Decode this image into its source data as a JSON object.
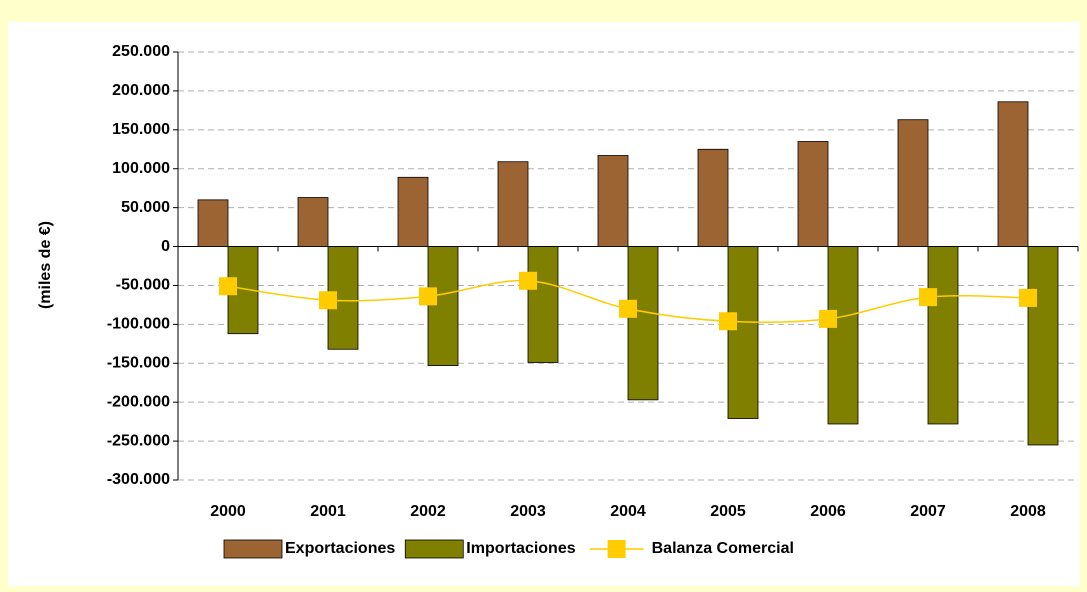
{
  "chart_data": {
    "type": "bar",
    "y_label": "(miles de €)",
    "categories": [
      "2000",
      "2001",
      "2002",
      "2003",
      "2004",
      "2005",
      "2006",
      "2007",
      "2008"
    ],
    "series": [
      {
        "name": "Exportaciones",
        "type": "bar",
        "color": "#9c6433",
        "values": [
          60000,
          63000,
          89000,
          109000,
          117000,
          125000,
          135000,
          163000,
          186000
        ]
      },
      {
        "name": "Importaciones",
        "type": "bar",
        "color": "#808000",
        "values": [
          -112000,
          -132000,
          -153000,
          -149000,
          -197000,
          -221000,
          -228000,
          -228000,
          -255000
        ]
      },
      {
        "name": "Balanza Comercial",
        "type": "line",
        "color": "#ffcc00",
        "values": [
          -51000,
          -69000,
          -64000,
          -44000,
          -80000,
          -96000,
          -93000,
          -65000,
          -66000
        ]
      }
    ],
    "ylim": [
      -300000,
      250000
    ],
    "yticks": [
      {
        "value": -300000,
        "label": "-300.000"
      },
      {
        "value": -250000,
        "label": "-250.000"
      },
      {
        "value": -200000,
        "label": "-200.000"
      },
      {
        "value": -150000,
        "label": "-150.000"
      },
      {
        "value": -100000,
        "label": "-100.000"
      },
      {
        "value": -50000,
        "label": "-50.000"
      },
      0,
      {
        "value": 50000,
        "label": "50.000"
      },
      {
        "value": 100000,
        "label": "100.000"
      },
      {
        "value": 150000,
        "label": "150.000"
      },
      {
        "value": 200000,
        "label": "200.000"
      },
      {
        "value": 250000,
        "label": "250.000"
      }
    ],
    "grid": true,
    "legend": "bottom"
  }
}
